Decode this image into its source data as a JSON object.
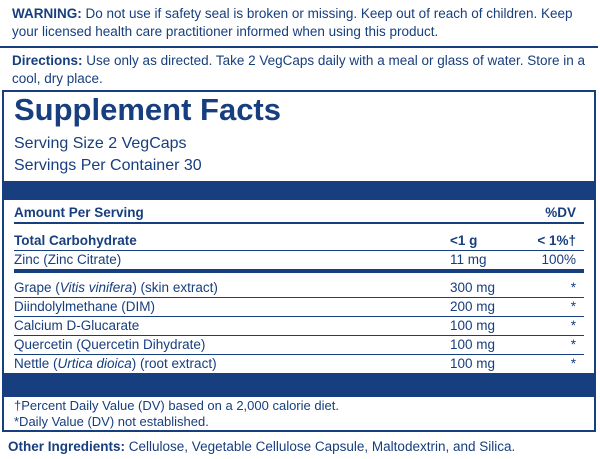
{
  "warning": {
    "label": "WARNING:",
    "text": "Do not use if safety seal is broken or missing. Keep out of reach of children. Keep your licensed health care practitioner informed when using this product."
  },
  "directions": {
    "label": "Directions:",
    "text": "Use only as directed. Take 2 VegCaps daily with a meal or glass of water. Store in a cool, dry place."
  },
  "facts": {
    "title": "Supplement Facts",
    "serving_size": "Serving Size 2 VegCaps",
    "servings_per_container": "Servings Per Container 30",
    "header": {
      "amount": "Amount Per Serving",
      "dv": "%DV"
    },
    "sections": [
      [
        {
          "name_parts": [
            "Total Carbohydrate"
          ],
          "amount": "<1 g",
          "dv": "< 1%†",
          "bold": true
        },
        {
          "name_parts": [
            "Zinc (Zinc Citrate)"
          ],
          "amount": "11 mg",
          "dv": "100%"
        }
      ],
      [
        {
          "name_parts": [
            "Grape (",
            "Vitis vinifera",
            ") (skin extract)"
          ],
          "amount": "300 mg",
          "dv": "*"
        },
        {
          "name_parts": [
            "Diindolylmethane (DIM)"
          ],
          "amount": "200 mg",
          "dv": "*"
        },
        {
          "name_parts": [
            "Calcium D-Glucarate"
          ],
          "amount": "100 mg",
          "dv": "*"
        },
        {
          "name_parts": [
            "Quercetin (Quercetin Dihydrate)"
          ],
          "amount": "100 mg",
          "dv": "*"
        },
        {
          "name_parts": [
            "Nettle (",
            "Urtica dioica",
            ") (root extract)"
          ],
          "amount": "100 mg",
          "dv": "*"
        }
      ]
    ],
    "footnotes": [
      "†Percent Daily Value (DV) based on a 2,000 calorie diet.",
      "*Daily Value (DV) not established."
    ]
  },
  "other_ingredients": {
    "label": "Other Ingredients:",
    "text": "Cellulose, Vegetable Cellulose Capsule, Maltodextrin, and Silica."
  }
}
